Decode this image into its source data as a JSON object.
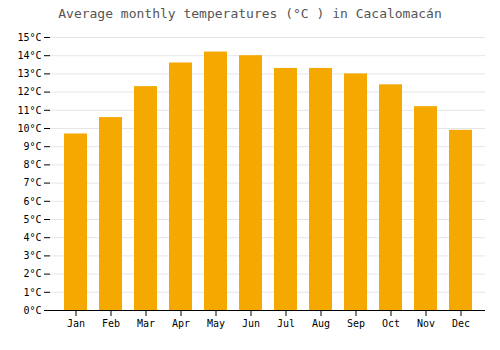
{
  "chart_data": {
    "type": "bar",
    "title": "Average monthly temperatures (°C ) in Cacalomacán",
    "categories": [
      "Jan",
      "Feb",
      "Mar",
      "Apr",
      "May",
      "Jun",
      "Jul",
      "Aug",
      "Sep",
      "Oct",
      "Nov",
      "Dec"
    ],
    "values": [
      9.7,
      10.6,
      12.3,
      13.6,
      14.2,
      14.0,
      13.3,
      13.3,
      13.0,
      12.4,
      11.2,
      9.9
    ],
    "color": "#F5A800",
    "ylim": [
      0,
      15
    ],
    "yticks": [
      {
        "value": 0,
        "label": "0°C"
      },
      {
        "value": 1,
        "label": "1°C"
      },
      {
        "value": 2,
        "label": "2°C"
      },
      {
        "value": 3,
        "label": "3°C"
      },
      {
        "value": 4,
        "label": "4°C"
      },
      {
        "value": 5,
        "label": "5°C"
      },
      {
        "value": 6,
        "label": "6°C"
      },
      {
        "value": 7,
        "label": "7°C"
      },
      {
        "value": 8,
        "label": "8°C"
      },
      {
        "value": 9,
        "label": "9°C"
      },
      {
        "value": 10,
        "label": "10°C"
      },
      {
        "value": 11,
        "label": "11°C"
      },
      {
        "value": 12,
        "label": "12°C"
      },
      {
        "value": 13,
        "label": "13°C"
      },
      {
        "value": 14,
        "label": "14°C"
      },
      {
        "value": 15,
        "label": "15°C"
      }
    ],
    "grid": true
  }
}
